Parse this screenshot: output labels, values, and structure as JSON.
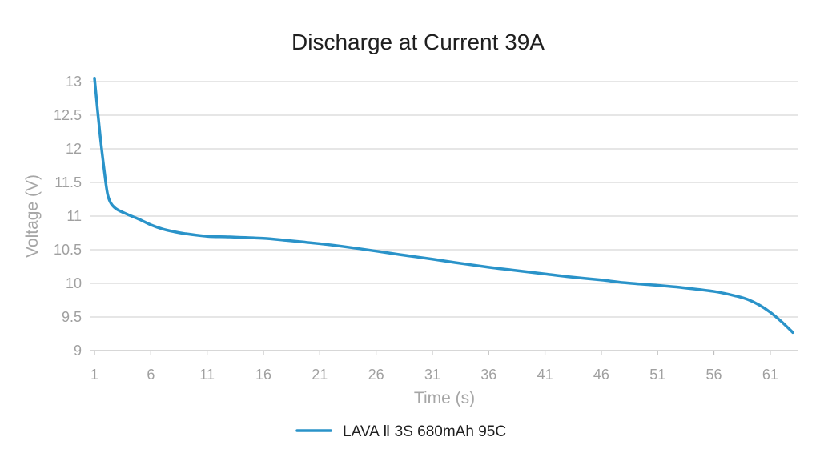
{
  "chart_data": {
    "type": "line",
    "title": "Discharge at Current 39A",
    "xlabel": "Time (s)",
    "ylabel": "Voltage (V)",
    "x_ticks": [
      "1",
      "6",
      "11",
      "16",
      "21",
      "26",
      "31",
      "36",
      "41",
      "46",
      "51",
      "56",
      "61"
    ],
    "y_ticks": [
      "13",
      "12.5",
      "12",
      "11.5",
      "11",
      "10.5",
      "10",
      "9.5",
      "9"
    ],
    "xlim": [
      1,
      63
    ],
    "ylim": [
      9,
      13
    ],
    "grid": true,
    "legend_position": "bottom",
    "series": [
      {
        "name": "LAVA Ⅱ 3S 680mAh 95C",
        "color": "#2a93c9",
        "x": [
          1,
          1.5,
          2,
          2.2,
          2.5,
          3,
          4,
          5,
          6,
          7,
          8,
          9,
          11,
          13,
          16,
          18,
          21,
          23,
          26,
          28,
          31,
          33,
          36,
          38,
          41,
          43,
          46,
          48,
          51,
          53,
          56,
          58,
          59,
          60,
          61,
          62,
          63
        ],
        "y": [
          13.05,
          12.2,
          11.5,
          11.3,
          11.18,
          11.1,
          11.02,
          10.95,
          10.87,
          10.81,
          10.77,
          10.74,
          10.7,
          10.69,
          10.67,
          10.64,
          10.59,
          10.55,
          10.48,
          10.43,
          10.36,
          10.31,
          10.24,
          10.2,
          10.14,
          10.1,
          10.05,
          10.01,
          9.97,
          9.94,
          9.88,
          9.81,
          9.76,
          9.68,
          9.57,
          9.43,
          9.27
        ]
      }
    ]
  }
}
